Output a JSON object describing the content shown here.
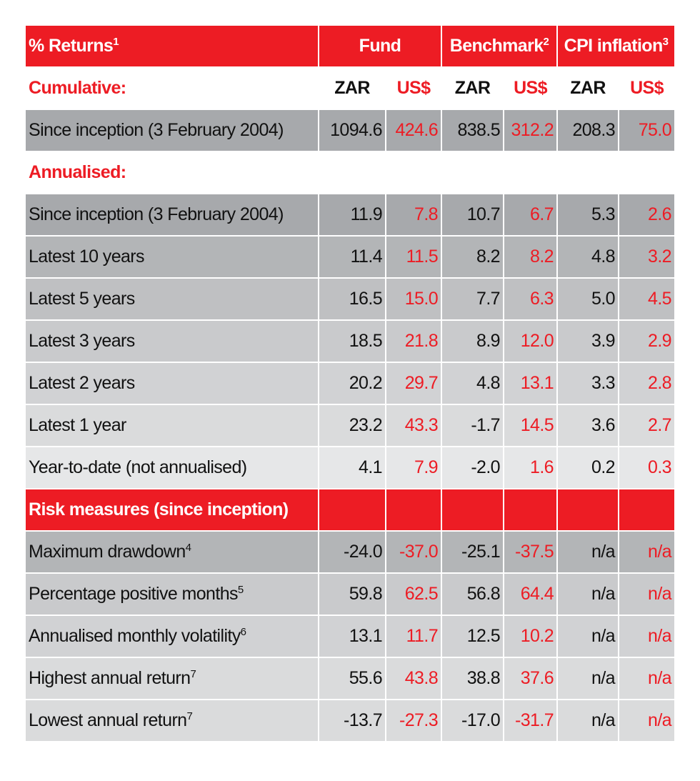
{
  "header": {
    "title": "% Returns",
    "title_sup": "1",
    "fund": "Fund",
    "benchmark": "Benchmark",
    "benchmark_sup": "2",
    "cpi": "CPI inflation",
    "cpi_sup": "3"
  },
  "currencies": {
    "zar": "ZAR",
    "usd": "US$"
  },
  "cumulative": {
    "label": "Cumulative:",
    "rows": [
      {
        "label": "Since inception (3 February 2004)",
        "values": [
          "1094.6",
          "424.6",
          "838.5",
          "312.2",
          "208.3",
          "75.0"
        ]
      }
    ]
  },
  "annualised": {
    "label": "Annualised:",
    "rows": [
      {
        "label": "Since inception (3 February 2004)",
        "values": [
          "11.9",
          "7.8",
          "10.7",
          "6.7",
          "5.3",
          "2.6"
        ]
      },
      {
        "label": "Latest 10 years",
        "values": [
          "11.4",
          "11.5",
          "8.2",
          "8.2",
          "4.8",
          "3.2"
        ]
      },
      {
        "label": "Latest 5 years",
        "values": [
          "16.5",
          "15.0",
          "7.7",
          "6.3",
          "5.0",
          "4.5"
        ]
      },
      {
        "label": "Latest 3 years",
        "values": [
          "18.5",
          "21.8",
          "8.9",
          "12.0",
          "3.9",
          "2.9"
        ]
      },
      {
        "label": "Latest 2 years",
        "values": [
          "20.2",
          "29.7",
          "4.8",
          "13.1",
          "3.3",
          "2.8"
        ]
      },
      {
        "label": "Latest 1 year",
        "values": [
          "23.2",
          "43.3",
          "-1.7",
          "14.5",
          "3.6",
          "2.7"
        ]
      },
      {
        "label": "Year-to-date (not annualised)",
        "values": [
          "4.1",
          "7.9",
          "-2.0",
          "1.6",
          "0.2",
          "0.3"
        ]
      }
    ]
  },
  "risk": {
    "label": "Risk measures (since inception)",
    "rows": [
      {
        "label": "Maximum drawdown",
        "sup": "4",
        "values": [
          "-24.0",
          "-37.0",
          "-25.1",
          "-37.5",
          "n/a",
          "n/a"
        ]
      },
      {
        "label": "Percentage positive months",
        "sup": "5",
        "values": [
          "59.8",
          "62.5",
          "56.8",
          "64.4",
          "n/a",
          "n/a"
        ]
      },
      {
        "label": "Annualised monthly volatility",
        "sup": "6",
        "values": [
          "13.1",
          "11.7",
          "12.5",
          "10.2",
          "n/a",
          "n/a"
        ]
      },
      {
        "label": "Highest annual return",
        "sup": "7",
        "values": [
          "55.6",
          "43.8",
          "38.8",
          "37.6",
          "n/a",
          "n/a"
        ]
      },
      {
        "label": "Lowest annual return",
        "sup": "7",
        "values": [
          "-13.7",
          "-27.3",
          "-17.0",
          "-31.7",
          "n/a",
          "n/a"
        ]
      }
    ]
  },
  "colors": {
    "accent": "#ed1c24",
    "usd_text": "#ed1c24",
    "row_dark": "#a7a9ac",
    "row_light": "#e6e7e8"
  }
}
